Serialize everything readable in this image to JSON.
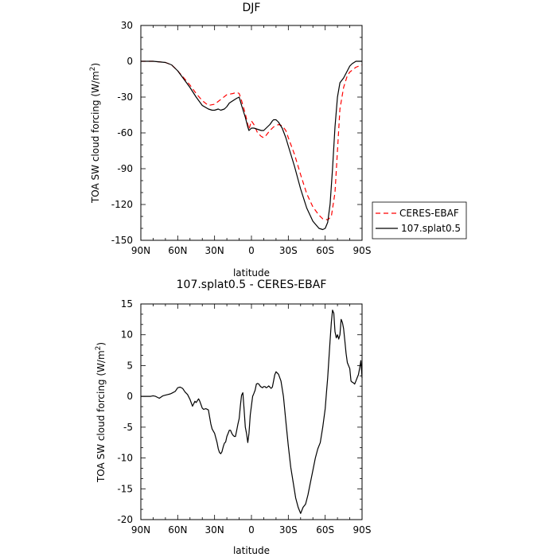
{
  "chart_data": [
    {
      "type": "line",
      "title": "DJF",
      "xlabel": "latitude",
      "ylabel": "TOA SW cloud forcing (W/m",
      "ylabel_sup": "2",
      "ylabel_close": ")",
      "xlim": [
        90,
        -90
      ],
      "ylim": [
        -150,
        30
      ],
      "xticks": [
        90,
        60,
        30,
        0,
        -30,
        -60,
        -90
      ],
      "xtick_labels": [
        "90N",
        "60N",
        "30N",
        "0",
        "30S",
        "60S",
        "90S"
      ],
      "yticks": [
        30,
        0,
        -30,
        -60,
        -90,
        -120,
        -150
      ],
      "ytick_labels": [
        "30",
        "0",
        "-30",
        "-60",
        "-90",
        "-120",
        "-150"
      ],
      "legend": "right",
      "series": [
        {
          "name": "CERES-EBAF",
          "color": "#ff0000",
          "dash": "dashed",
          "x": [
            90,
            80,
            70,
            65,
            60,
            55,
            50,
            45,
            40,
            35,
            30,
            25,
            20,
            15,
            12,
            10,
            8,
            5,
            3,
            2,
            0,
            -2,
            -5,
            -8,
            -10,
            -12,
            -15,
            -18,
            -20,
            -22,
            -25,
            -28,
            -30,
            -35,
            -40,
            -45,
            -50,
            -55,
            -58,
            -60,
            -62,
            -65,
            -68,
            -70,
            -72,
            -75,
            -78,
            -80,
            -85,
            -90
          ],
          "y": [
            0,
            0,
            -1,
            -3,
            -8,
            -14,
            -20,
            -27,
            -33,
            -37,
            -36,
            -32,
            -28,
            -27,
            -26,
            -27,
            -33,
            -44,
            -53,
            -57,
            -50,
            -53,
            -60,
            -63,
            -64,
            -62,
            -58,
            -55,
            -54,
            -53,
            -54,
            -58,
            -64,
            -78,
            -95,
            -111,
            -122,
            -129,
            -132,
            -132,
            -133,
            -130,
            -110,
            -75,
            -40,
            -22,
            -12,
            -9,
            -5,
            -3
          ]
        },
        {
          "name": "107.splat0.5",
          "color": "#000000",
          "dash": "solid",
          "x": [
            90,
            80,
            70,
            65,
            60,
            55,
            50,
            45,
            40,
            35,
            32,
            30,
            27,
            25,
            22,
            20,
            18,
            15,
            12,
            10,
            8,
            5,
            3,
            2,
            0,
            -2,
            -5,
            -8,
            -10,
            -12,
            -15,
            -17,
            -18,
            -20,
            -22,
            -25,
            -28,
            -30,
            -35,
            -40,
            -45,
            -50,
            -55,
            -58,
            -60,
            -62,
            -64,
            -66,
            -68,
            -70,
            -72,
            -75,
            -78,
            -80,
            -82,
            -85,
            -90
          ],
          "y": [
            0,
            0,
            -1,
            -3,
            -8,
            -15,
            -22,
            -30,
            -37,
            -40,
            -41,
            -41,
            -40,
            -41,
            -40,
            -38,
            -35,
            -33,
            -31,
            -30,
            -37,
            -47,
            -55,
            -58,
            -56,
            -56,
            -57,
            -58,
            -58,
            -56,
            -53,
            -50,
            -49,
            -49,
            -51,
            -56,
            -64,
            -71,
            -88,
            -107,
            -123,
            -134,
            -140,
            -141,
            -140,
            -135,
            -120,
            -90,
            -55,
            -30,
            -18,
            -14,
            -8,
            -4,
            -2,
            0,
            0
          ]
        }
      ]
    },
    {
      "type": "line",
      "title": "107.splat0.5 - CERES-EBAF",
      "xlabel": "latitude",
      "ylabel": "TOA SW cloud forcing (W/m",
      "ylabel_sup": "2",
      "ylabel_close": ")",
      "xlim": [
        90,
        -90
      ],
      "ylim": [
        -20,
        15
      ],
      "xticks": [
        90,
        60,
        30,
        0,
        -30,
        -60,
        -90
      ],
      "xtick_labels": [
        "90N",
        "60N",
        "30N",
        "0",
        "30S",
        "60S",
        "90S"
      ],
      "yticks": [
        15,
        10,
        5,
        0,
        -5,
        -10,
        -15,
        -20
      ],
      "ytick_labels": [
        "15",
        "10",
        "5",
        "0",
        "-5",
        "-10",
        "-15",
        "-20"
      ],
      "series": [
        {
          "color": "#000000",
          "dash": "solid",
          "x": [
            90,
            85,
            82,
            80,
            78,
            75,
            72,
            70,
            68,
            66,
            65,
            62,
            60,
            58,
            56,
            54,
            52,
            50,
            48,
            46,
            45,
            43,
            42,
            40,
            39,
            37,
            35,
            33,
            32,
            30,
            28,
            27,
            26,
            25,
            24,
            23,
            22,
            21,
            20,
            19,
            18,
            17,
            16,
            15,
            14,
            13,
            12,
            11,
            10,
            9,
            8,
            7,
            6,
            5,
            4,
            3,
            2,
            1,
            0,
            -1,
            -2,
            -3,
            -4,
            -5,
            -6,
            -7,
            -8,
            -9,
            -10,
            -11,
            -12,
            -13,
            -14,
            -15,
            -16,
            -17,
            -18,
            -19,
            -20,
            -22,
            -24,
            -26,
            -28,
            -30,
            -32,
            -34,
            -36,
            -38,
            -40,
            -42,
            -44,
            -46,
            -48,
            -50,
            -52,
            -54,
            -56,
            -58,
            -60,
            -61,
            -62,
            -63,
            -64,
            -65,
            -66,
            -67,
            -68,
            -69,
            -70,
            -71,
            -72,
            -73,
            -74,
            -75,
            -76,
            -77,
            -78,
            -79,
            -80,
            -81,
            -82,
            -83,
            -84,
            -85,
            -86,
            -87,
            -88,
            -89,
            -90
          ],
          "y": [
            0,
            0,
            0,
            0.1,
            0,
            -0.3,
            0.1,
            0.2,
            0.3,
            0.4,
            0.5,
            0.8,
            1.4,
            1.5,
            1.3,
            0.7,
            0.3,
            -0.5,
            -1.6,
            -0.8,
            -1.0,
            -0.4,
            -0.8,
            -1.9,
            -2.1,
            -2.0,
            -2.2,
            -4.5,
            -5.3,
            -6.0,
            -7.5,
            -8.5,
            -9.1,
            -9.3,
            -9.0,
            -8.2,
            -7.6,
            -7.4,
            -6.5,
            -6.0,
            -5.5,
            -5.5,
            -6.0,
            -6.3,
            -6.5,
            -6.5,
            -5.5,
            -4.5,
            -3.6,
            -1.5,
            0.2,
            0.6,
            -2.0,
            -5.0,
            -6.0,
            -7.5,
            -6.0,
            -3.0,
            -1.5,
            0.0,
            0.5,
            1.0,
            2.0,
            2.1,
            2.0,
            1.7,
            1.5,
            1.4,
            1.6,
            1.6,
            1.4,
            1.5,
            1.7,
            1.5,
            1.3,
            1.5,
            2.5,
            3.5,
            4.0,
            3.6,
            2.5,
            0,
            -4.0,
            -8.0,
            -11.5,
            -14.0,
            -16.5,
            -18.0,
            -19.0,
            -18.0,
            -17.5,
            -16.0,
            -14.0,
            -12.0,
            -10.0,
            -8.5,
            -7.5,
            -5.0,
            -2.0,
            0.5,
            3.0,
            6.0,
            9.0,
            12.0,
            14.0,
            13.5,
            10.5,
            9.5,
            10.0,
            9.3,
            10.0,
            12.5,
            12.0,
            11.0,
            9.0,
            7.0,
            5.5,
            5.0,
            4.5,
            2.5,
            2.3,
            2.2,
            2.0,
            2.5,
            3.0,
            3.5,
            4.5,
            5.8,
            3.0
          ]
        }
      ]
    }
  ]
}
